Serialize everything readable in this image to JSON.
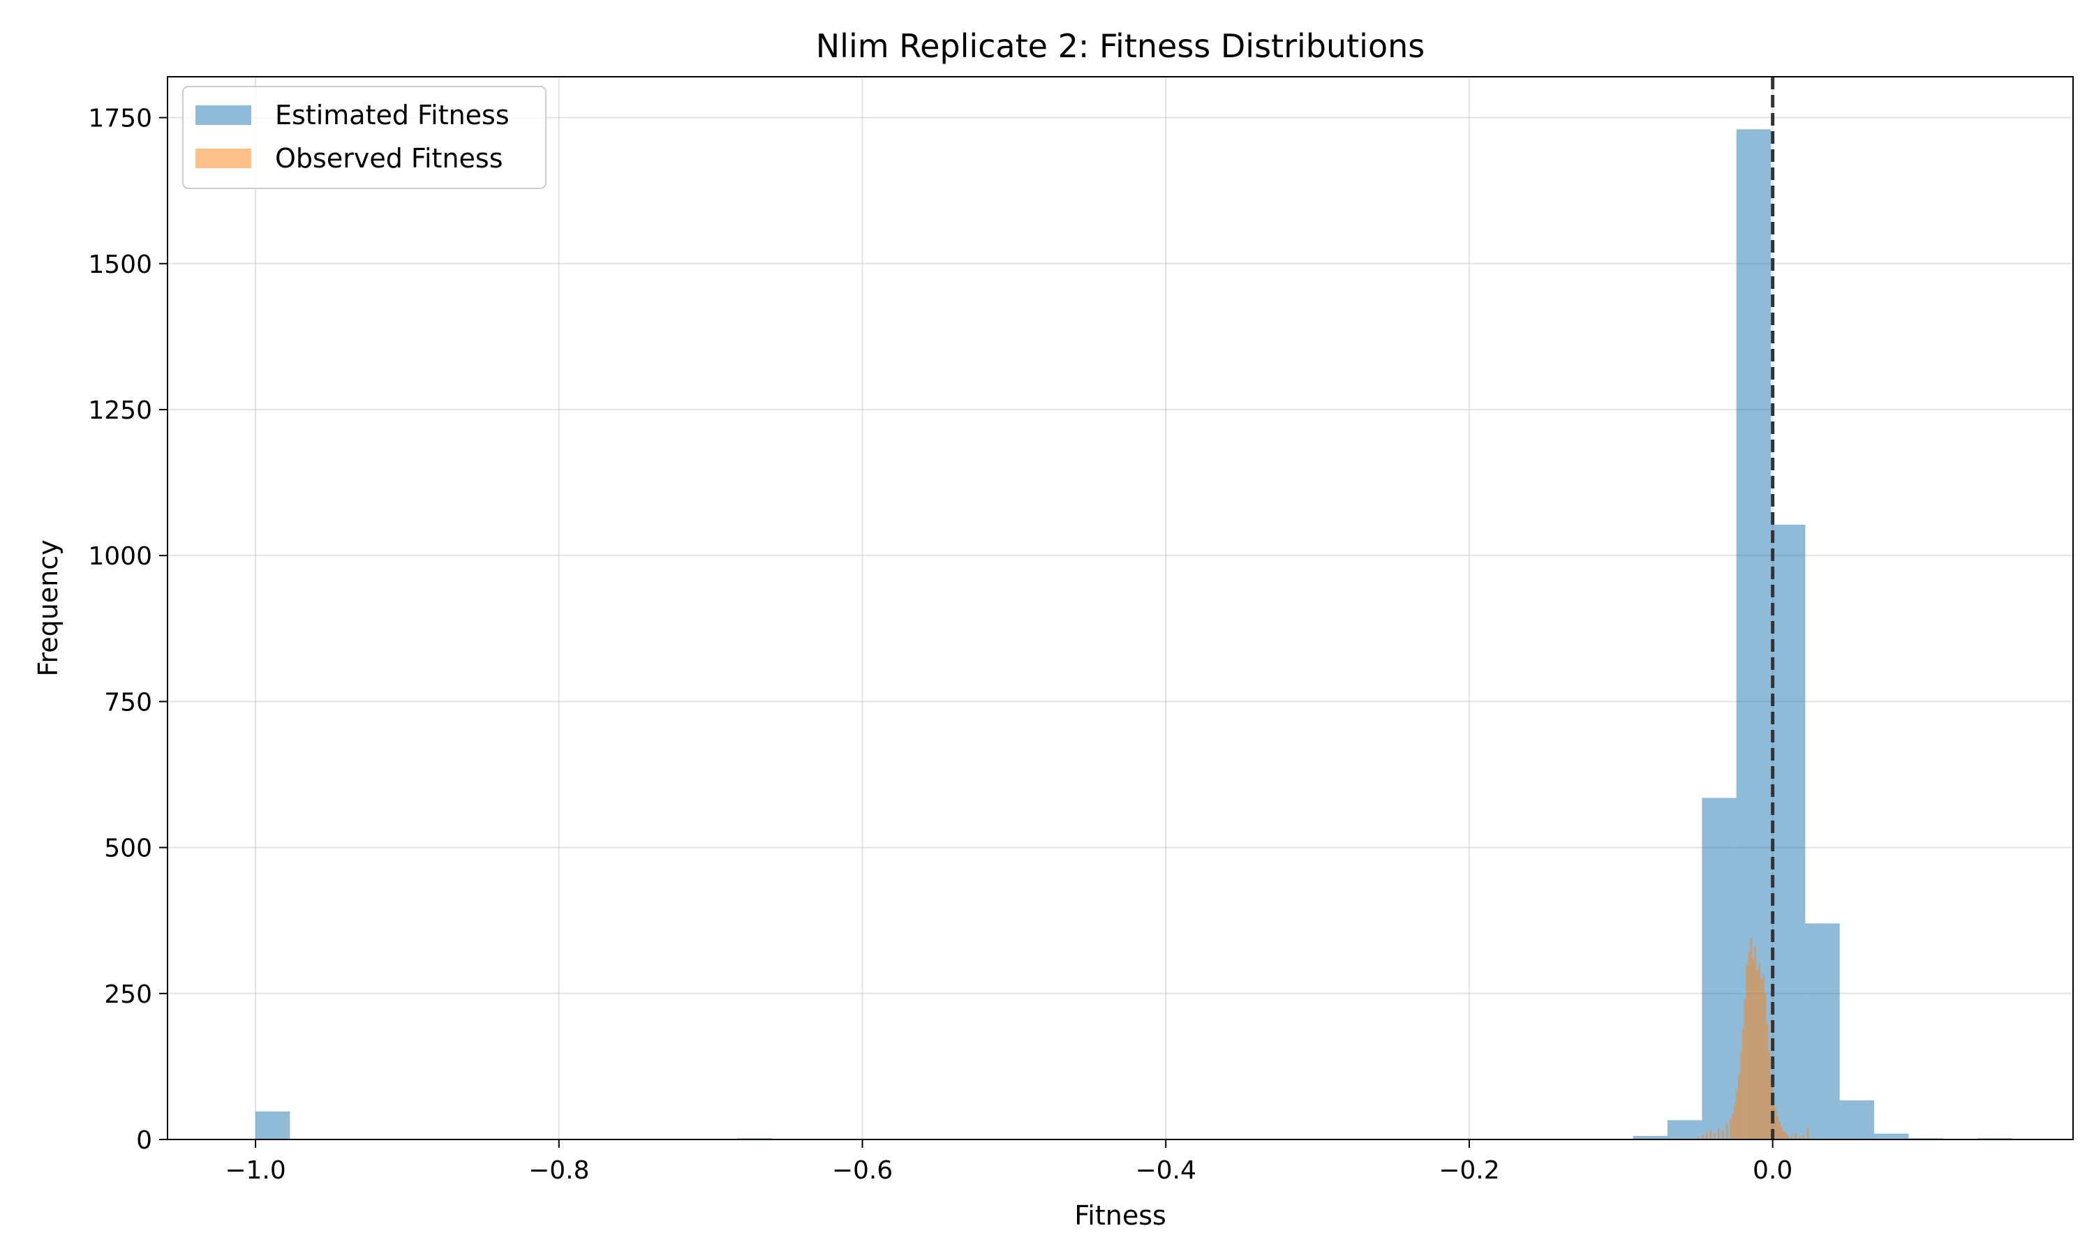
{
  "chart_data": {
    "type": "bar",
    "title": "Nlim Replicate 2: Fitness Distributions",
    "xlabel": "Fitness",
    "ylabel": "Frequency",
    "xlim": [
      -1.058,
      0.198
    ],
    "ylim": [
      0,
      1820
    ],
    "grid": true,
    "legend_position": "top-left",
    "x_ticks": [
      {
        "value": -1.0,
        "label": "−1.0"
      },
      {
        "value": -0.8,
        "label": "−0.8"
      },
      {
        "value": -0.6,
        "label": "−0.6"
      },
      {
        "value": -0.4,
        "label": "−0.4"
      },
      {
        "value": -0.2,
        "label": "−0.2"
      },
      {
        "value": 0.0,
        "label": "0.0"
      }
    ],
    "y_ticks": [
      {
        "value": 0,
        "label": "0"
      },
      {
        "value": 250,
        "label": "250"
      },
      {
        "value": 500,
        "label": "500"
      },
      {
        "value": 750,
        "label": "750"
      },
      {
        "value": 1000,
        "label": "1000"
      },
      {
        "value": 1250,
        "label": "1250"
      },
      {
        "value": 1500,
        "label": "1500"
      },
      {
        "value": 1750,
        "label": "1750"
      }
    ],
    "reference_line": {
      "x": 0.0,
      "style": "dashed",
      "color": "#333333"
    },
    "series": [
      {
        "name": "Estimated Fitness",
        "color": "#1f77b4",
        "opacity": 0.5,
        "bin_width": 0.0227,
        "bins": [
          {
            "start": -1.0,
            "count": 48
          },
          {
            "start": -0.9773,
            "count": 1
          },
          {
            "start": -0.6823,
            "count": 2
          },
          {
            "start": -0.092,
            "count": 6
          },
          {
            "start": -0.0693,
            "count": 33
          },
          {
            "start": -0.0466,
            "count": 585
          },
          {
            "start": -0.0239,
            "count": 1730
          },
          {
            "start": -0.0012,
            "count": 1053
          },
          {
            "start": 0.0215,
            "count": 370
          },
          {
            "start": 0.0442,
            "count": 67
          },
          {
            "start": 0.0669,
            "count": 10
          },
          {
            "start": 0.0896,
            "count": 2
          },
          {
            "start": 0.1123,
            "count": 1
          },
          {
            "start": 0.135,
            "count": 2
          }
        ]
      },
      {
        "name": "Observed Fitness",
        "color": "#ff7f0e",
        "opacity": 0.5,
        "bin_width": 0.00133,
        "bins": [
          {
            "start": -0.052,
            "count": 2
          },
          {
            "start": -0.0495,
            "count": 4
          },
          {
            "start": -0.0468,
            "count": 7
          },
          {
            "start": -0.0442,
            "count": 12
          },
          {
            "start": -0.0415,
            "count": 16
          },
          {
            "start": -0.0388,
            "count": 10
          },
          {
            "start": -0.0362,
            "count": 20
          },
          {
            "start": -0.0335,
            "count": 15
          },
          {
            "start": -0.0308,
            "count": 28
          },
          {
            "start": -0.0282,
            "count": 35
          },
          {
            "start": -0.0268,
            "count": 45
          },
          {
            "start": -0.0255,
            "count": 60
          },
          {
            "start": -0.0242,
            "count": 85
          },
          {
            "start": -0.0228,
            "count": 110
          },
          {
            "start": -0.0215,
            "count": 150
          },
          {
            "start": -0.0202,
            "count": 190
          },
          {
            "start": -0.0188,
            "count": 240
          },
          {
            "start": -0.0175,
            "count": 300
          },
          {
            "start": -0.0162,
            "count": 320
          },
          {
            "start": -0.0148,
            "count": 345
          },
          {
            "start": -0.0135,
            "count": 310
          },
          {
            "start": -0.0122,
            "count": 330
          },
          {
            "start": -0.0108,
            "count": 290
          },
          {
            "start": -0.0095,
            "count": 300
          },
          {
            "start": -0.0082,
            "count": 275
          },
          {
            "start": -0.0068,
            "count": 280
          },
          {
            "start": -0.0055,
            "count": 250
          },
          {
            "start": -0.0042,
            "count": 200
          },
          {
            "start": -0.0028,
            "count": 150
          },
          {
            "start": -0.0015,
            "count": 100
          },
          {
            "start": -0.0002,
            "count": 70
          },
          {
            "start": 0.0012,
            "count": 55
          },
          {
            "start": 0.0025,
            "count": 40
          },
          {
            "start": 0.0038,
            "count": 30
          },
          {
            "start": 0.0052,
            "count": 22
          },
          {
            "start": 0.0065,
            "count": 15
          },
          {
            "start": 0.0078,
            "count": 12
          },
          {
            "start": 0.0092,
            "count": 8
          },
          {
            "start": 0.0118,
            "count": 6
          },
          {
            "start": 0.0145,
            "count": 10
          },
          {
            "start": 0.0172,
            "count": 4
          },
          {
            "start": 0.0198,
            "count": 7
          },
          {
            "start": 0.0225,
            "count": 20
          }
        ]
      }
    ]
  }
}
